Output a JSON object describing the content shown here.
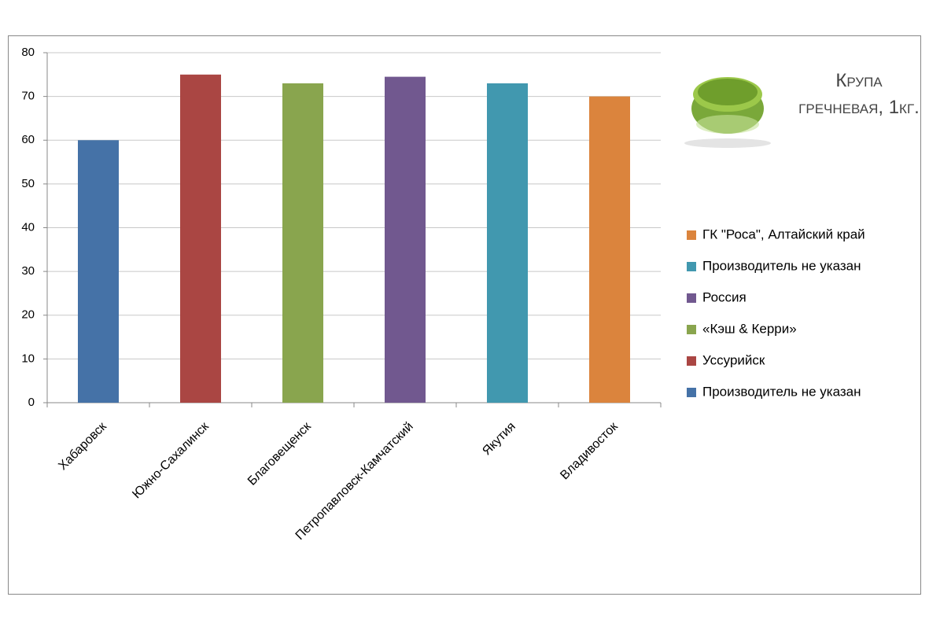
{
  "chart_data": {
    "type": "bar",
    "title": "Крупа гречневая, 1кг.",
    "categories": [
      "Хабаровск",
      "Южно-Сахалинск",
      "Благовещенск",
      "Петропавловск-Камчатский",
      "Якутия",
      "Владивосток"
    ],
    "series": [
      {
        "name": "Производитель не указан",
        "color": "#4572a7",
        "values": [
          60,
          null,
          null,
          null,
          null,
          null
        ]
      },
      {
        "name": "Уссурийск",
        "color": "#aa4643",
        "values": [
          null,
          75,
          null,
          null,
          null,
          null
        ]
      },
      {
        "name": "«Кэш & Керри»",
        "color": "#89a54e",
        "values": [
          null,
          null,
          73,
          null,
          null,
          null
        ]
      },
      {
        "name": "Россия",
        "color": "#71588f",
        "values": [
          null,
          null,
          null,
          74.5,
          null,
          null
        ]
      },
      {
        "name": "Производитель не указан",
        "color": "#4198af",
        "values": [
          null,
          null,
          null,
          null,
          73,
          null
        ]
      },
      {
        "name": "ГК \"Роса\", Алтайский край",
        "color": "#db843d",
        "values": [
          null,
          null,
          null,
          null,
          null,
          70
        ]
      }
    ],
    "ylim": [
      0,
      80
    ],
    "yticks": [
      0,
      10,
      20,
      30,
      40,
      50,
      60,
      70,
      80
    ],
    "grid": true
  }
}
